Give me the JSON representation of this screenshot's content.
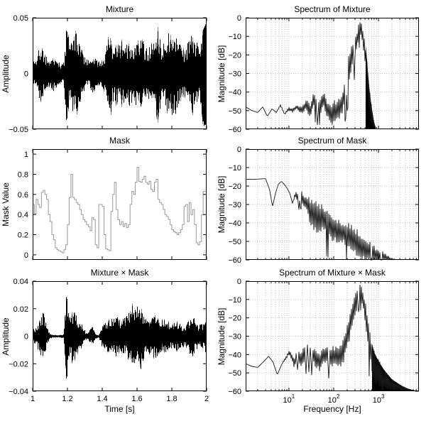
{
  "figure": {
    "background": "#ffffff",
    "text_color": "#000000",
    "frame_color": "#000000",
    "grid_color": "#b5b5b5",
    "waveform_color": "#000000",
    "waveform_shadow_color": "#8a8a8a",
    "mask_line_color": "#9a9a9a",
    "spectrum_line_color": "#1a1a1a"
  },
  "chart_data": [
    {
      "id": "mixture-waveform",
      "type": "line",
      "render": "waveform",
      "title": "Mixture",
      "xlabel": "",
      "ylabel": "Amplitude",
      "xlim": [
        1,
        2
      ],
      "ylim": [
        -0.05,
        0.05
      ],
      "grid": false,
      "xticks": {
        "values": [
          1,
          1.2,
          1.4,
          1.6,
          1.8,
          2
        ],
        "labels": [
          "",
          "",
          "",
          "",
          "",
          ""
        ]
      },
      "yticks": {
        "values": [
          0.05,
          0,
          -0.05
        ],
        "labels": [
          "0.05",
          "0",
          "−0.05"
        ]
      },
      "series": [
        {
          "name": "mixture",
          "t": [
            1.0,
            1.02,
            1.04,
            1.06,
            1.08,
            1.1,
            1.12,
            1.14,
            1.16,
            1.18,
            1.195,
            1.21,
            1.23,
            1.25,
            1.27,
            1.29,
            1.31,
            1.33,
            1.35,
            1.37,
            1.39,
            1.41,
            1.43,
            1.445,
            1.46,
            1.48,
            1.5,
            1.52,
            1.54,
            1.56,
            1.58,
            1.6,
            1.62,
            1.64,
            1.66,
            1.68,
            1.7,
            1.72,
            1.74,
            1.76,
            1.78,
            1.8,
            1.82,
            1.84,
            1.86,
            1.88,
            1.9,
            1.92,
            1.94,
            1.96,
            1.98,
            1.99,
            2.0
          ],
          "envelope": [
            0.011,
            0.013,
            0.026,
            0.022,
            0.015,
            0.012,
            0.017,
            0.012,
            0.009,
            0.011,
            0.048,
            0.028,
            0.034,
            0.04,
            0.03,
            0.017,
            0.013,
            0.013,
            0.019,
            0.012,
            0.01,
            0.017,
            0.027,
            0.044,
            0.026,
            0.028,
            0.028,
            0.031,
            0.026,
            0.03,
            0.026,
            0.031,
            0.036,
            0.028,
            0.022,
            0.026,
            0.03,
            0.045,
            0.026,
            0.03,
            0.036,
            0.041,
            0.038,
            0.033,
            0.025,
            0.02,
            0.032,
            0.036,
            0.03,
            0.02,
            0.046,
            0.05,
            0.05
          ]
        }
      ]
    },
    {
      "id": "spectrum-of-mixture",
      "type": "line",
      "render": "spectrum",
      "title": "Spectrum of Mixture",
      "xlabel": "",
      "ylabel": "Magnitude [dB]",
      "xscale": "log",
      "xlim": [
        1.08,
        8000
      ],
      "ylim": [
        -60,
        0
      ],
      "grid": true,
      "xticks": {
        "values": [
          10,
          100,
          1000
        ],
        "labels": [
          "",
          "",
          ""
        ]
      },
      "yticks": {
        "values": [
          0,
          -10,
          -20,
          -30,
          -40,
          -50,
          -60
        ],
        "labels": [
          "0",
          "−10",
          "−20",
          "−30",
          "−40",
          "−50",
          "−60"
        ]
      },
      "fill_range": [
        500,
        880
      ],
      "series": [
        {
          "name": "mixture-spectrum",
          "freq": [
            1.08,
            1.5,
            2,
            2.6,
            3.3,
            4.2,
            5.2,
            6.5,
            8,
            10,
            12,
            15,
            19,
            24,
            30,
            36,
            44,
            54,
            60,
            70,
            85,
            100,
            120,
            140,
            160,
            180,
            200,
            230,
            260,
            300,
            340,
            380,
            420,
            460,
            500,
            540,
            590,
            650,
            720,
            800,
            870
          ],
          "mid_db": [
            -48,
            -50,
            -51,
            -48,
            -53,
            -49,
            -51,
            -47,
            -52,
            -49,
            -50,
            -48,
            -50,
            -47,
            -50,
            -44,
            -49,
            -46,
            -44,
            -49,
            -52,
            -51,
            -50,
            -48,
            -45,
            -40,
            -32,
            -25,
            -21,
            -16,
            -11,
            -5,
            -7,
            -12,
            -18,
            -27,
            -38,
            -47,
            -53,
            -58,
            -60
          ],
          "spread_db": [
            0,
            0,
            0,
            0,
            0,
            0,
            0,
            0.5,
            0.5,
            1,
            1,
            1.5,
            2,
            3,
            5,
            5,
            4,
            5,
            5,
            5,
            6,
            7,
            6,
            6,
            6,
            7,
            8,
            8,
            7,
            7,
            6,
            4,
            5,
            6,
            8,
            9,
            8,
            6,
            4,
            2,
            1
          ]
        }
      ]
    },
    {
      "id": "mask",
      "type": "line",
      "render": "steps",
      "title": "Mask",
      "xlabel": "",
      "ylabel": "Mask Value",
      "xlim": [
        1,
        2
      ],
      "ylim": [
        -0.05,
        1.05
      ],
      "grid": false,
      "xticks": {
        "values": [
          1,
          1.2,
          1.4,
          1.6,
          1.8,
          2
        ],
        "labels": [
          "",
          "",
          "",
          "",
          "",
          ""
        ]
      },
      "yticks": {
        "values": [
          1,
          0.8,
          0.6,
          0.4,
          0.2,
          0
        ],
        "labels": [
          "1",
          "0.8",
          "0.6",
          "0.4",
          "0.2",
          "0"
        ]
      },
      "series": [
        {
          "name": "mask-steps",
          "t_start": 1,
          "t_end": 2,
          "values": [
            0.5,
            0.41,
            0.55,
            0.5,
            0.47,
            0.62,
            0.64,
            0.6,
            0.55,
            0.4,
            0.33,
            0.2,
            0.15,
            0.07,
            0.05,
            0.04,
            0.03,
            0.02,
            0.05,
            0.1,
            0.3,
            0.57,
            0.8,
            0.57,
            0.55,
            0.52,
            0.5,
            0.45,
            0.4,
            0.35,
            0.33,
            0.3,
            0.28,
            0.24,
            0.37,
            0.35,
            0.1,
            0.07,
            0.5,
            0.5,
            0.48,
            0.2,
            0.06,
            0.05,
            0.04,
            0.43,
            0.6,
            0.72,
            0.45,
            0.35,
            0.3,
            0.33,
            0.28,
            0.31,
            0.27,
            0.3,
            0.5,
            0.63,
            0.6,
            0.72,
            0.87,
            0.73,
            0.72,
            0.75,
            0.78,
            0.72,
            0.7,
            0.73,
            0.65,
            0.63,
            0.72,
            0.75,
            0.55,
            0.52,
            0.5,
            0.45,
            0.4,
            0.38,
            0.35,
            0.3,
            0.25,
            0.23,
            0.22,
            0.2,
            0.22,
            0.25,
            0.3,
            0.48,
            0.5,
            0.33,
            0.52,
            0.4,
            0.45,
            0.3,
            0.12,
            0.1,
            0.13,
            0.4,
            0.63,
            0.63
          ]
        }
      ]
    },
    {
      "id": "spectrum-of-mask",
      "type": "line",
      "render": "spectrum",
      "title": "Spectrum of Mask",
      "xlabel": "",
      "ylabel": "Magnitude [dB]",
      "xscale": "log",
      "xlim": [
        1.08,
        8000
      ],
      "ylim": [
        -60,
        0
      ],
      "grid": true,
      "xticks": {
        "values": [
          10,
          100,
          1000
        ],
        "labels": [
          "",
          "",
          ""
        ]
      },
      "yticks": {
        "values": [
          0,
          -10,
          -20,
          -30,
          -40,
          -50,
          -60
        ],
        "labels": [
          "0",
          "−10",
          "−20",
          "−30",
          "−40",
          "−50",
          "−60"
        ]
      },
      "series": [
        {
          "name": "mask-spectrum",
          "freq": [
            1.08,
            1.6,
            2.2,
            3,
            3.7,
            4.3,
            5,
            5.8,
            6.8,
            7.8,
            9,
            10.5,
            12,
            14,
            16,
            18,
            21,
            25,
            30,
            37,
            45,
            55,
            70,
            90,
            115,
            145,
            185,
            235,
            300,
            380,
            480,
            620,
            800,
            1050,
            1400,
            1900,
            2400
          ],
          "mid_db": [
            -16.3,
            -16.4,
            -16.2,
            -16,
            -22,
            -31,
            -24,
            -19,
            -17.5,
            -19,
            -21,
            -24,
            -29.5,
            -24,
            -27,
            -24.5,
            -28,
            -30,
            -34,
            -36,
            -38,
            -37,
            -40,
            -42,
            -44,
            -45,
            -46,
            -48,
            -50,
            -52,
            -54,
            -55.5,
            -57,
            -58,
            -59,
            -60,
            -60
          ],
          "spread_db": [
            0,
            0,
            0,
            0,
            0,
            0,
            0,
            0,
            0,
            0,
            0,
            0,
            0,
            2,
            3,
            3,
            4,
            5,
            8,
            9,
            10,
            8,
            8,
            8,
            8,
            7,
            7,
            8,
            8,
            8,
            7,
            6,
            5,
            4,
            3,
            1,
            0.5
          ]
        }
      ]
    },
    {
      "id": "mixture-x-mask-waveform",
      "type": "line",
      "render": "waveform",
      "title": "Mixture × Mask",
      "xlabel": "Time [s]",
      "ylabel": "Amplitude",
      "xlim": [
        1,
        2
      ],
      "ylim": [
        -0.04,
        0.04
      ],
      "grid": false,
      "xticks": {
        "values": [
          1,
          1.2,
          1.4,
          1.6,
          1.8,
          2
        ],
        "labels": [
          "1",
          "1.2",
          "1.4",
          "1.6",
          "1.8",
          "2"
        ]
      },
      "yticks": {
        "values": [
          0.04,
          0.02,
          0,
          -0.02,
          -0.04
        ],
        "labels": [
          "0.04",
          "0.02",
          "0",
          "−0.02",
          "−0.04"
        ]
      },
      "series": [
        {
          "name": "mixture-x-mask",
          "t": [
            1.0,
            1.02,
            1.04,
            1.06,
            1.08,
            1.1,
            1.12,
            1.14,
            1.16,
            1.18,
            1.195,
            1.21,
            1.23,
            1.25,
            1.27,
            1.29,
            1.31,
            1.33,
            1.345,
            1.36,
            1.38,
            1.4,
            1.42,
            1.44,
            1.46,
            1.48,
            1.5,
            1.52,
            1.54,
            1.56,
            1.58,
            1.6,
            1.62,
            1.64,
            1.66,
            1.68,
            1.7,
            1.72,
            1.74,
            1.76,
            1.78,
            1.8,
            1.82,
            1.84,
            1.86,
            1.88,
            1.9,
            1.92,
            1.94,
            1.96,
            1.98,
            2.0
          ],
          "envelope": [
            0.005,
            0.006,
            0.013,
            0.018,
            0.008,
            0.002,
            0.001,
            0.001,
            0.001,
            0.002,
            0.036,
            0.015,
            0.02,
            0.017,
            0.011,
            0.007,
            0.002,
            0.005,
            0.007,
            0.002,
            0.001,
            0.008,
            0.011,
            0.012,
            0.013,
            0.015,
            0.012,
            0.013,
            0.015,
            0.021,
            0.024,
            0.022,
            0.026,
            0.017,
            0.014,
            0.012,
            0.017,
            0.015,
            0.012,
            0.012,
            0.011,
            0.01,
            0.012,
            0.01,
            0.008,
            0.008,
            0.012,
            0.016,
            0.01,
            0.008,
            0.01,
            0.013
          ]
        }
      ]
    },
    {
      "id": "spectrum-of-mixture-x-mask",
      "type": "line",
      "render": "spectrum",
      "title": "Spectrum of Mixture × Mask",
      "xlabel": "Frequency [Hz]",
      "ylabel": "Magnitude [dB]",
      "xscale": "log",
      "xlim": [
        1.08,
        8000
      ],
      "ylim": [
        -60,
        0
      ],
      "grid": true,
      "xticks": {
        "values": [
          10,
          100,
          1000
        ],
        "labels": [
          "10^1",
          "10^2",
          "10^3"
        ]
      },
      "yticks": {
        "values": [
          0,
          -10,
          -20,
          -30,
          -40,
          -50,
          -60
        ],
        "labels": [
          "0",
          "−10",
          "−20",
          "−30",
          "−40",
          "−50",
          "−60"
        ]
      },
      "fill_range": [
        700,
        8000
      ],
      "series": [
        {
          "name": "mixture-x-mask-spectrum",
          "freq": [
            1.08,
            1.5,
            2,
            2.7,
            3.5,
            4.4,
            5.5,
            7,
            8.5,
            10,
            11.5,
            13,
            15,
            18,
            22,
            27,
            33,
            40,
            48,
            58,
            70,
            85,
            100,
            120,
            140,
            165,
            195,
            230,
            265,
            300,
            340,
            380,
            420,
            460,
            510,
            570,
            640,
            720,
            820,
            950,
            1100,
            1300,
            1600,
            2000,
            2600,
            3400,
            4500,
            6000,
            8000
          ],
          "mid_db": [
            -45,
            -46.5,
            -47,
            -44,
            -41,
            -44,
            -51,
            -45,
            -42,
            -39,
            -41,
            -45,
            -40.5,
            -43,
            -40,
            -38,
            -40,
            -42,
            -44,
            -41,
            -40,
            -41,
            -41,
            -40,
            -42,
            -38,
            -31,
            -24,
            -19,
            -14,
            -9,
            -4,
            -7,
            -11,
            -17,
            -25,
            -34,
            -42,
            -47,
            -50,
            -52,
            -53.5,
            -55,
            -56.5,
            -57.5,
            -58.5,
            -59.2,
            -59.7,
            -60
          ],
          "spread_db": [
            0,
            0,
            0,
            0,
            0,
            0,
            0,
            0,
            1,
            1,
            2,
            3,
            3,
            4,
            5,
            5,
            5,
            6,
            6,
            5,
            5,
            6,
            6,
            6,
            7,
            7,
            8,
            8,
            8,
            7,
            5,
            4,
            5,
            6,
            8,
            9,
            9,
            9,
            9,
            9,
            8,
            6.5,
            5,
            3.5,
            2.5,
            1.5,
            0.8,
            0.3,
            0
          ]
        }
      ]
    }
  ]
}
